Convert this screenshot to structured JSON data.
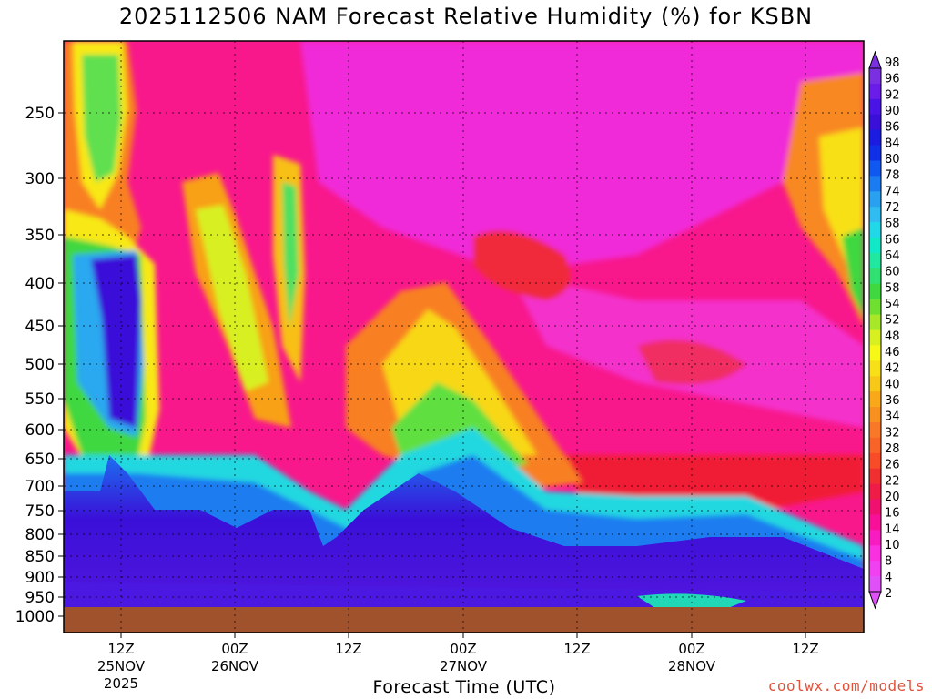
{
  "chart_data": {
    "type": "heatmap",
    "title": "2025112506 NAM Forecast Relative Humidity (%) for KSBN",
    "xlabel": "Forecast Time (UTC)",
    "ylabel": "",
    "y_axis": {
      "log_pressure": true,
      "range_hpa": [
        200,
        1050
      ],
      "ticks": [
        250,
        300,
        350,
        400,
        450,
        500,
        550,
        600,
        650,
        700,
        750,
        800,
        850,
        900,
        950,
        1000
      ]
    },
    "x_axis": {
      "range_hours": [
        0,
        84
      ],
      "ticks": [
        {
          "hour": 6,
          "lines": [
            "12Z",
            "25NOV",
            "2025"
          ]
        },
        {
          "hour": 18,
          "lines": [
            "00Z",
            "26NOV"
          ]
        },
        {
          "hour": 30,
          "lines": [
            "12Z"
          ]
        },
        {
          "hour": 42,
          "lines": [
            "00Z",
            "27NOV"
          ]
        },
        {
          "hour": 54,
          "lines": [
            "12Z"
          ]
        },
        {
          "hour": 66,
          "lines": [
            "00Z",
            "28NOV"
          ]
        },
        {
          "hour": 78,
          "lines": [
            "12Z"
          ]
        }
      ]
    },
    "grid": true,
    "colorbar": {
      "placement": "right",
      "labels": [
        98,
        96,
        92,
        90,
        86,
        84,
        80,
        78,
        74,
        72,
        68,
        66,
        64,
        60,
        58,
        54,
        52,
        48,
        46,
        42,
        40,
        36,
        34,
        32,
        28,
        26,
        22,
        20,
        16,
        14,
        10,
        8,
        4,
        2
      ],
      "colors": [
        "#7a2fe0",
        "#6a1ce8",
        "#4b14e6",
        "#3a10d8",
        "#1c1ce0",
        "#1030e8",
        "#1058f0",
        "#1a7cf0",
        "#2aa0f0",
        "#30bcf0",
        "#20d8e8",
        "#10e8c8",
        "#20e8a0",
        "#30e070",
        "#40d840",
        "#70e030",
        "#a8e828",
        "#d8f020",
        "#f8f818",
        "#f8e018",
        "#f8c818",
        "#f8a818",
        "#f89020",
        "#f87828",
        "#f86428",
        "#f84c28",
        "#f03030",
        "#f01c48",
        "#f01070",
        "#f81098",
        "#f81cc0",
        "#f830e0",
        "#f040f0",
        "#e050f8"
      ]
    },
    "fields": {
      "upper_dry_level": "pink 2-10%",
      "low_moist_layer": "purple 90-98% near 800-1000 hPa",
      "terrain": "brown below ~975 hPa"
    }
  },
  "credit": "coolwx.com/models"
}
